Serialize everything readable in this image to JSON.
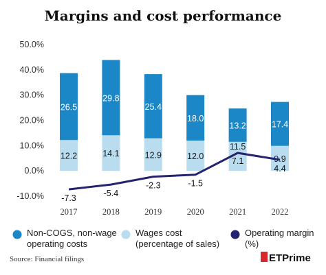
{
  "chart_data": {
    "type": "bar",
    "title": "Margins and cost performance",
    "categories": [
      "2017",
      "2018",
      "2019",
      "2020",
      "2021",
      "2022"
    ],
    "stacked": true,
    "ylim": [
      -10,
      50
    ],
    "yticks": [
      "-10.0%",
      "0.0%",
      "10.0%",
      "20.0%",
      "30.0%",
      "40.0%",
      "50.0%"
    ],
    "ytick_values": [
      -10,
      0,
      10,
      20,
      30,
      40,
      50
    ],
    "grid": false,
    "legend_position": "bottom",
    "series": [
      {
        "name": "Wages cost (percentage of sales)",
        "legend_lines": [
          "Wages cost",
          "(percentage of sales)"
        ],
        "type": "bar",
        "color": "#b9ddef",
        "label_color": "#1a1a1a",
        "values": [
          12.2,
          14.1,
          12.9,
          12.0,
          11.5,
          9.9
        ],
        "labels": [
          "12.2",
          "14.1",
          "12.9",
          "12.0",
          "11.5",
          "9.9"
        ]
      },
      {
        "name": "Non-COGS, non-wage operating costs",
        "legend_lines": [
          "Non-COGS, non-wage",
          "operating costs"
        ],
        "type": "bar",
        "color": "#1b87c6",
        "label_color": "#ffffff",
        "values": [
          26.5,
          29.8,
          25.4,
          18.0,
          13.2,
          17.4
        ],
        "labels": [
          "26.5",
          "29.8",
          "25.4",
          "18.0",
          "13.2",
          "17.4"
        ]
      },
      {
        "name": "Operating margin (%)",
        "legend_lines": [
          "Operating margin",
          "(%)"
        ],
        "type": "line",
        "color": "#24236d",
        "values": [
          -7.3,
          -5.4,
          -2.3,
          -1.5,
          7.1,
          4.4
        ],
        "labels": [
          "-7.3",
          "-5.4",
          "-2.3",
          "-1.5",
          "7.1",
          "4.4"
        ]
      }
    ]
  },
  "source": "Source: Financial filings",
  "brand": "ETPrime"
}
